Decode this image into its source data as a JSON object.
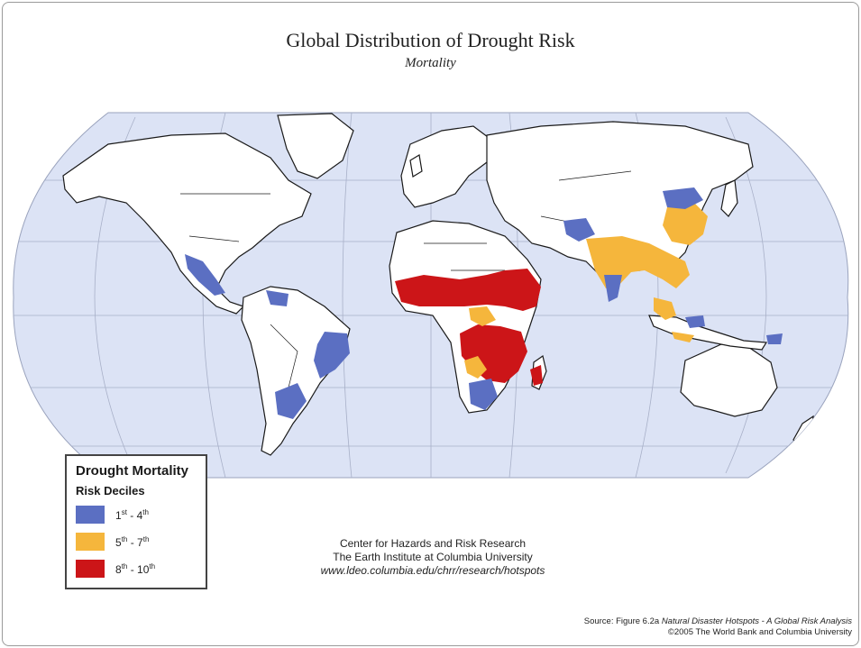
{
  "map": {
    "title": "Global Distribution of Drought Risk",
    "subtitle": "Mortality",
    "ocean_color": "#dce3f5",
    "land_color": "#ffffff",
    "outline_color": "#1a1a1a"
  },
  "legend": {
    "title": "Drought Mortality",
    "subtitle": "Risk Deciles",
    "items": [
      {
        "from": "1",
        "from_suffix": "st",
        "to": "4",
        "to_suffix": "th",
        "color": "#5b6fc2"
      },
      {
        "from": "5",
        "from_suffix": "th",
        "to": "7",
        "to_suffix": "th",
        "color": "#f5b63c"
      },
      {
        "from": "8",
        "from_suffix": "th",
        "to": "10",
        "to_suffix": "th",
        "color": "#cc1518"
      }
    ]
  },
  "credit": {
    "line1": "Center for Hazards and Risk Research",
    "line2": "The Earth Institute at Columbia University",
    "url": "www.ldeo.columbia.edu/chrr/research/hotspots"
  },
  "source": {
    "prefix": "Source: Figure 6.2a ",
    "italic": "Natural Disaster Hotspots - A Global Risk Analysis",
    "copyright": "©2005 The World Bank and Columbia University"
  }
}
